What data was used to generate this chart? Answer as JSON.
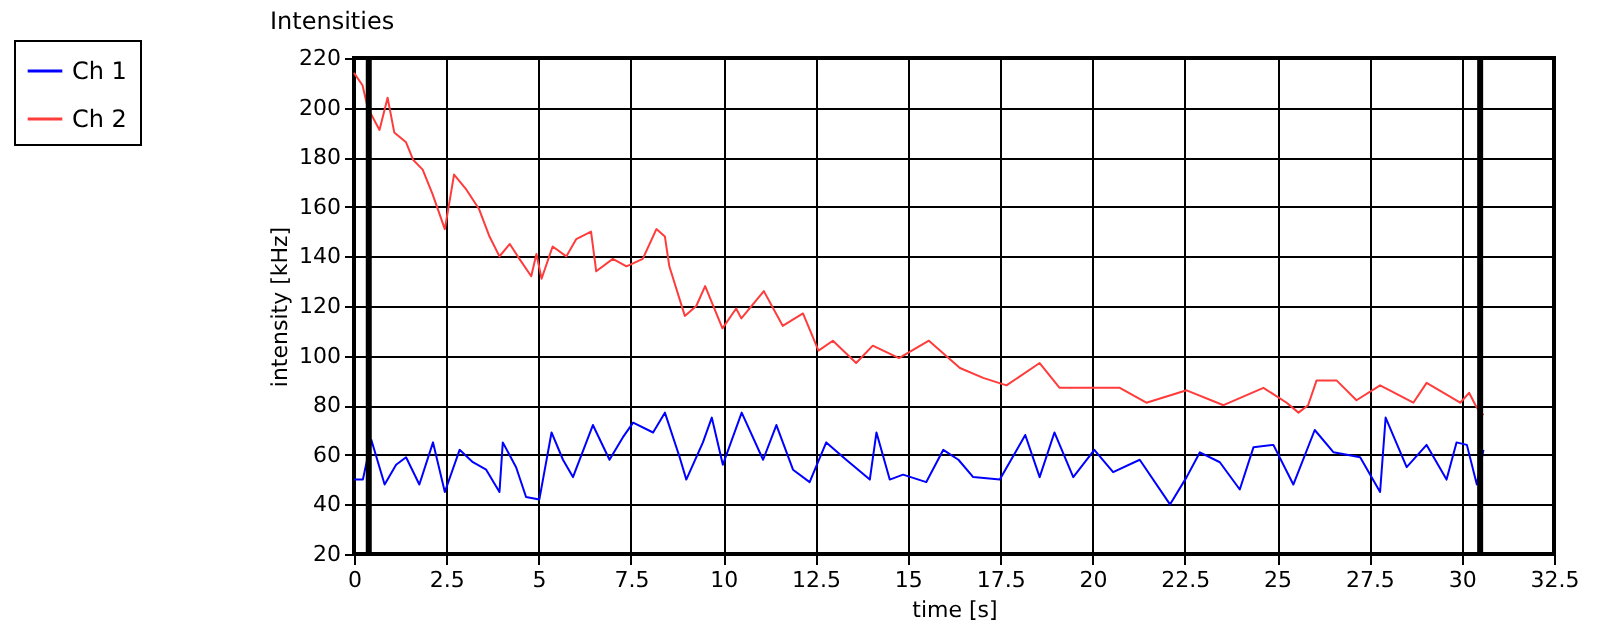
{
  "chart_data": {
    "type": "line",
    "title": "Intensities",
    "xlabel": "time [s]",
    "ylabel": "intensity [kHz]",
    "xlim": [
      0,
      32.5
    ],
    "xticks": [
      0,
      2.5,
      5,
      7.5,
      10,
      12.5,
      15,
      17.5,
      20,
      22.5,
      25,
      27.5,
      30,
      32.5
    ],
    "ylim": [
      20,
      220
    ],
    "yticks": [
      20,
      40,
      60,
      80,
      100,
      120,
      140,
      160,
      180,
      200,
      220
    ],
    "grid": true,
    "legend": "top left",
    "marker": "none",
    "line_style": "solid",
    "ref_lines": [
      {
        "axis": "x",
        "value": 0.4,
        "color": "#000000"
      },
      {
        "axis": "x",
        "value": 30.5,
        "color": "#000000"
      }
    ],
    "series": [
      {
        "name": "Ch 1",
        "color": "#0000ff",
        "x": [
          0,
          0.24,
          0.47,
          0.83,
          1.14,
          1.41,
          1.77,
          2.14,
          2.46,
          2.86,
          3.22,
          3.58,
          3.94,
          4.03,
          4.39,
          4.66,
          5.02,
          5.35,
          5.66,
          5.93,
          6.47,
          6.92,
          7.28,
          7.56,
          8.1,
          8.42,
          8.82,
          9.0,
          9.45,
          9.69,
          9.99,
          10.5,
          11.08,
          11.44,
          11.89,
          12.34,
          12.79,
          13.33,
          13.97,
          14.15,
          14.51,
          14.87,
          15.5,
          15.96,
          16.37,
          16.77,
          17.49,
          18.18,
          18.57,
          18.97,
          19.48,
          20.05,
          20.56,
          21.28,
          22.1,
          22.55,
          22.91,
          23.45,
          23.99,
          24.36,
          24.9,
          25.44,
          26.02,
          26.53,
          27.25,
          27.79,
          27.94,
          28.51,
          29.05,
          29.59,
          29.86,
          30.14,
          30.41,
          30.59
        ],
        "values": [
          50,
          50,
          66,
          48,
          56,
          59,
          48,
          65,
          45,
          62,
          57,
          54,
          45,
          65,
          55,
          43,
          42,
          69,
          58,
          51,
          72,
          58,
          67,
          73,
          69,
          77,
          59,
          50,
          65,
          75,
          56,
          77,
          58,
          72,
          54,
          49,
          65,
          58,
          50,
          69,
          50,
          52,
          49,
          62,
          58,
          51,
          50,
          68,
          51,
          69,
          51,
          62,
          53,
          58,
          40,
          51,
          61,
          57,
          46,
          63,
          64,
          48,
          70,
          61,
          59,
          45,
          75,
          55,
          64,
          50,
          65,
          64,
          48,
          62
        ]
      },
      {
        "name": "Ch 2",
        "color": "#ff3c3c",
        "x": [
          0,
          0.23,
          0.37,
          0.69,
          0.91,
          1.09,
          1.41,
          1.6,
          1.86,
          2.13,
          2.46,
          2.71,
          3.04,
          3.39,
          3.67,
          3.94,
          4.22,
          4.48,
          4.8,
          4.94,
          5.08,
          5.38,
          5.75,
          6.02,
          6.42,
          6.56,
          7.01,
          7.38,
          7.82,
          8.19,
          8.42,
          8.54,
          8.96,
          9.27,
          9.51,
          9.98,
          10.35,
          10.49,
          11.1,
          11.61,
          12.16,
          12.58,
          12.97,
          13.6,
          14.05,
          14.76,
          15.57,
          16.41,
          17.04,
          17.67,
          18.57,
          19.11,
          20.02,
          20.74,
          21.46,
          22.55,
          23.55,
          24.63,
          25.26,
          25.58,
          25.84,
          26.07,
          26.61,
          27.15,
          27.79,
          28.69,
          29.05,
          29.96,
          30.2,
          30.41,
          30.59
        ],
        "values": [
          214,
          209,
          200,
          191,
          204,
          190,
          186,
          179,
          175,
          165,
          151,
          173,
          167,
          159,
          148,
          140,
          145,
          139,
          132,
          141,
          131,
          144,
          140,
          147,
          150,
          134,
          139,
          136,
          139,
          151,
          148,
          136,
          116,
          120,
          128,
          111,
          119,
          115,
          126,
          112,
          117,
          102,
          106,
          97,
          104,
          99,
          106,
          95,
          91,
          88,
          97,
          87,
          87,
          87,
          81,
          86,
          80,
          87,
          81,
          77,
          80,
          90,
          90,
          82,
          88,
          81,
          89,
          81,
          85,
          79,
          76
        ]
      }
    ]
  }
}
